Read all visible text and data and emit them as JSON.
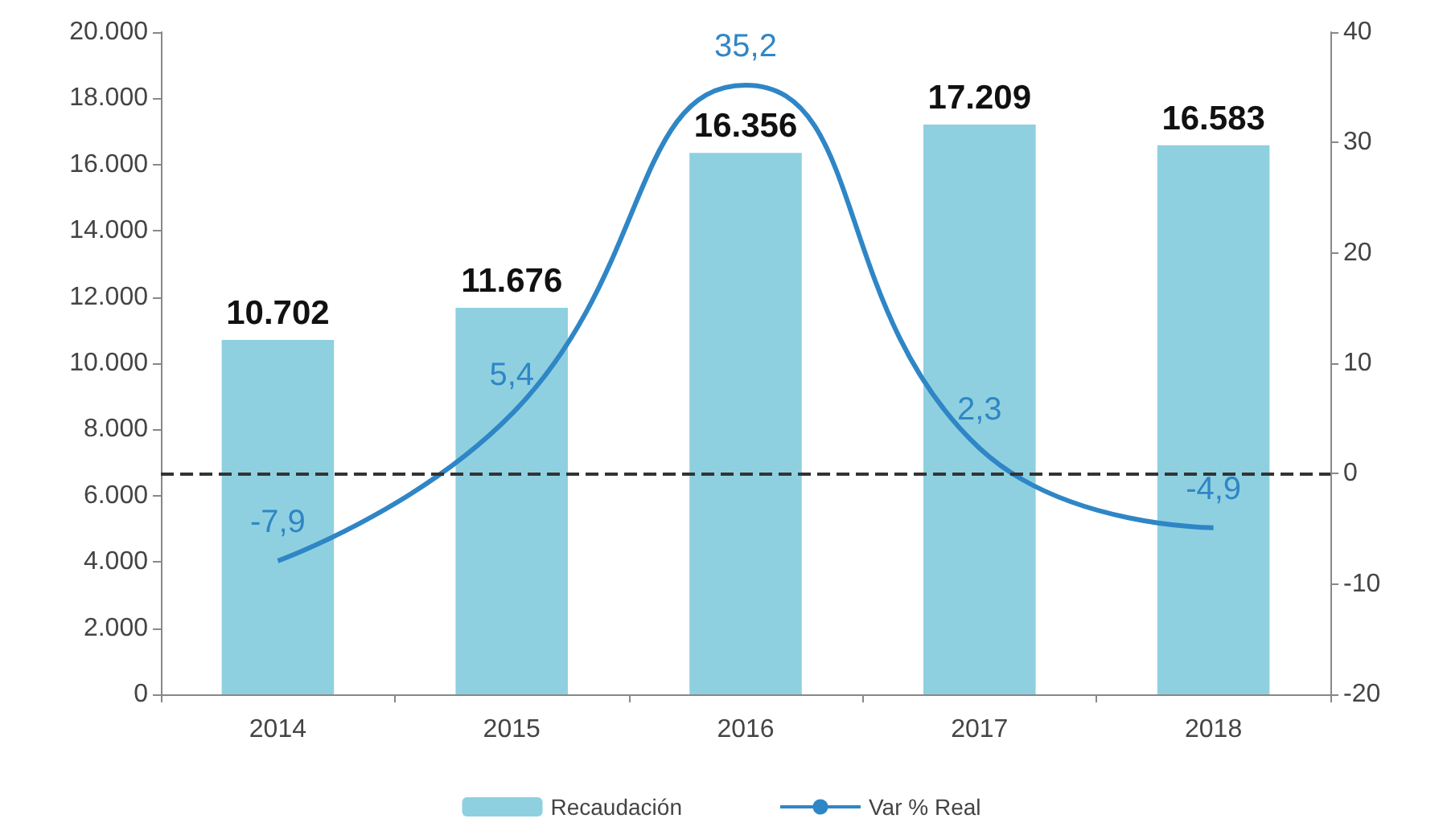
{
  "chart_data": {
    "type": "bar",
    "categories": [
      "2014",
      "2015",
      "2016",
      "2017",
      "2018"
    ],
    "series": [
      {
        "name": "Recaudación",
        "color": "#8fd0e0",
        "values": [
          10702,
          11676,
          16356,
          17209,
          16583
        ],
        "value_labels": [
          "10.702",
          "11.676",
          "16.356",
          "17.209",
          "16.583"
        ]
      },
      {
        "name": "Var % Real",
        "type": "line",
        "axis": "y2",
        "color": "#2f86c6",
        "values": [
          -7.9,
          5.4,
          35.2,
          2.3,
          -4.9
        ],
        "value_labels": [
          "-7,9",
          "5,4",
          "35,2",
          "2,3",
          "-4,9"
        ]
      }
    ],
    "ylim": [
      0,
      20000
    ],
    "yticks": [
      0,
      {
        "value": 2000,
        "label": "2.000"
      },
      {
        "value": 4000,
        "label": "4.000"
      },
      {
        "value": 6000,
        "label": "6.000"
      },
      {
        "value": 8000,
        "label": "8.000"
      },
      {
        "value": 10000,
        "label": "10.000"
      },
      {
        "value": 12000,
        "label": "12.000"
      },
      {
        "value": 14000,
        "label": "14.000"
      },
      {
        "value": 16000,
        "label": "16.000"
      },
      {
        "value": 18000,
        "label": "18.000"
      },
      {
        "value": 20000,
        "label": "20.000"
      }
    ],
    "y2lim": [
      -20,
      40
    ],
    "y2ticks": [
      -20,
      -10,
      0,
      10,
      20,
      30,
      40
    ],
    "ref_lines": [
      {
        "axis": "y2",
        "value": 0,
        "color": "#333333",
        "line_style": "dashed"
      }
    ],
    "grid": false,
    "legend": "bottom",
    "marker": "none",
    "line_style": "solid"
  }
}
